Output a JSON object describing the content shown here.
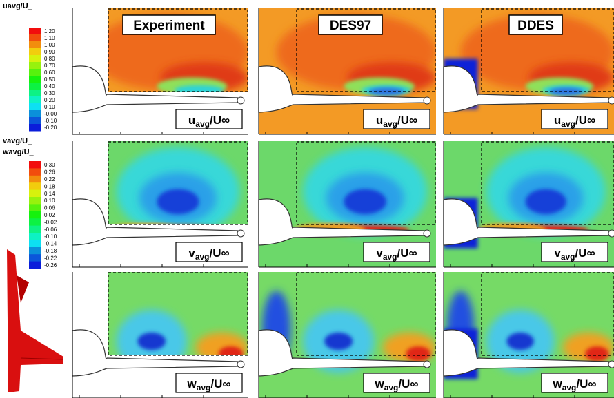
{
  "colorbars": [
    {
      "titles": [
        "uavg/U_"
      ],
      "ticks": [
        {
          "value": 1.2,
          "label": "1.20"
        },
        {
          "value": 1.1,
          "label": "1.10"
        },
        {
          "value": 1.0,
          "label": "1.00"
        },
        {
          "value": 0.9,
          "label": "0.90"
        },
        {
          "value": 0.8,
          "label": "0.80"
        },
        {
          "value": 0.7,
          "label": "0.70"
        },
        {
          "value": 0.6,
          "label": "0.60"
        },
        {
          "value": 0.5,
          "label": "0.50"
        },
        {
          "value": 0.4,
          "label": "0.40"
        },
        {
          "value": 0.3,
          "label": "0.30"
        },
        {
          "value": 0.2,
          "label": "0.20"
        },
        {
          "value": 0.1,
          "label": "0.10"
        },
        {
          "value": 0,
          "label": "-0.00"
        },
        {
          "value": -0.1,
          "label": "-0.10"
        },
        {
          "value": -0.2,
          "label": "-0.20"
        }
      ]
    },
    {
      "titles": [
        "vavg/U_",
        "wavg/U_"
      ],
      "ticks": [
        {
          "value": 0.3,
          "label": "0.30"
        },
        {
          "value": 0.26,
          "label": "0.26"
        },
        {
          "value": 0.22,
          "label": "0.22"
        },
        {
          "value": 0.18,
          "label": "0.18"
        },
        {
          "value": 0.14,
          "label": "0.14"
        },
        {
          "value": 0.1,
          "label": "0.10"
        },
        {
          "value": 0.06,
          "label": "0.06"
        },
        {
          "value": 0.02,
          "label": "0.02"
        },
        {
          "value": -0.02,
          "label": "-0.02"
        },
        {
          "value": -0.06,
          "label": "-0.06"
        },
        {
          "value": -0.1,
          "label": "-0.10"
        },
        {
          "value": -0.14,
          "label": "-0.14"
        },
        {
          "value": -0.18,
          "label": "-0.18"
        },
        {
          "value": -0.22,
          "label": "-0.22"
        },
        {
          "value": -0.26,
          "label": "-0.26"
        }
      ]
    }
  ],
  "columns": [
    "Experiment",
    "DES97",
    "DDES"
  ],
  "row_labels": [
    {
      "symbol": "u",
      "subscript": "avg",
      "suffix": "/U∞"
    },
    {
      "symbol": "v",
      "subscript": "avg",
      "suffix": "/U∞"
    },
    {
      "symbol": "w",
      "subscript": "avg",
      "suffix": "/U∞"
    }
  ]
}
